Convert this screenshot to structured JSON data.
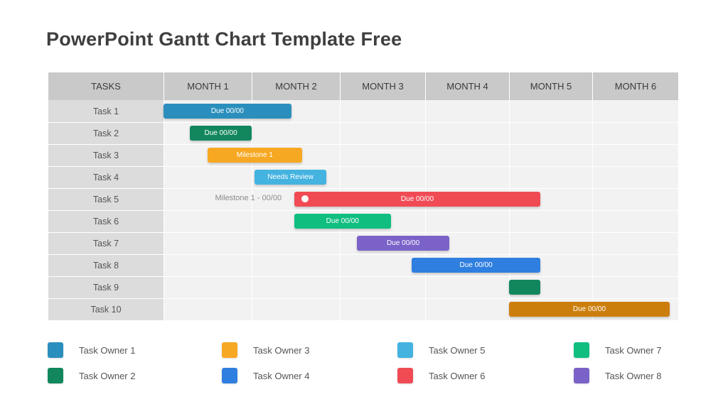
{
  "slide": {
    "title": "PowerPoint Gantt Chart Template Free"
  },
  "chart_data": {
    "type": "gantt",
    "task_header": "TASKS",
    "months": [
      "MONTH 1",
      "MONTH 2",
      "MONTH 3",
      "MONTH 4",
      "MONTH 5",
      "MONTH 6"
    ],
    "tasks": [
      {
        "name": "Task 1",
        "start": 0.0,
        "end": 1.45,
        "label": "Due 00/00",
        "owner": "Task Owner 1"
      },
      {
        "name": "Task 2",
        "start": 0.3,
        "end": 1.0,
        "label": "Due 00/00",
        "owner": "Task Owner 2"
      },
      {
        "name": "Task 3",
        "start": 0.5,
        "end": 1.57,
        "label": "Milestone 1",
        "owner": "Task Owner 3"
      },
      {
        "name": "Task 4",
        "start": 1.03,
        "end": 1.85,
        "label": "Needs Review",
        "owner": "Task Owner 5"
      },
      {
        "name": "Task 5",
        "start": 1.48,
        "end": 4.38,
        "label": "Due 00/00",
        "owner": "Task Owner 6",
        "marker": true,
        "annotation": "Milestone  1 - 00/00"
      },
      {
        "name": "Task 6",
        "start": 1.48,
        "end": 2.6,
        "label": "Due 00/00",
        "owner": "Task Owner 7"
      },
      {
        "name": "Task 7",
        "start": 2.2,
        "end": 3.29,
        "label": "Due 00/00",
        "owner": "Task Owner 8"
      },
      {
        "name": "Task 8",
        "start": 2.84,
        "end": 4.38,
        "label": "Due 00/00",
        "owner": "Task Owner 4"
      },
      {
        "name": "Task 9",
        "start": 4.0,
        "end": 4.38,
        "label": "",
        "owner": "Task Owner 2"
      },
      {
        "name": "Task 10",
        "start": 4.0,
        "end": 5.9,
        "label": "Due 00/00",
        "owner": "Orange"
      }
    ],
    "colors": {
      "Task Owner 1": "#2b8fbd",
      "Task Owner 2": "#12875e",
      "Task Owner 3": "#f7a823",
      "Task Owner 4": "#2f7fe0",
      "Task Owner 5": "#44b3e0",
      "Task Owner 6": "#f04b55",
      "Task Owner 7": "#10be80",
      "Task Owner 8": "#7b62c9",
      "Orange": "#cc7e0c"
    }
  },
  "legend": [
    {
      "label": "Task Owner 1",
      "color": "#2b8fbd"
    },
    {
      "label": "Task Owner 2",
      "color": "#12875e"
    },
    {
      "label": "Task Owner 3",
      "color": "#f7a823"
    },
    {
      "label": "Task Owner 4",
      "color": "#2f7fe0"
    },
    {
      "label": "Task Owner 5",
      "color": "#44b3e0"
    },
    {
      "label": "Task Owner 6",
      "color": "#f04b55"
    },
    {
      "label": "Task Owner 7",
      "color": "#10be80"
    },
    {
      "label": "Task Owner 8",
      "color": "#7b62c9"
    }
  ]
}
